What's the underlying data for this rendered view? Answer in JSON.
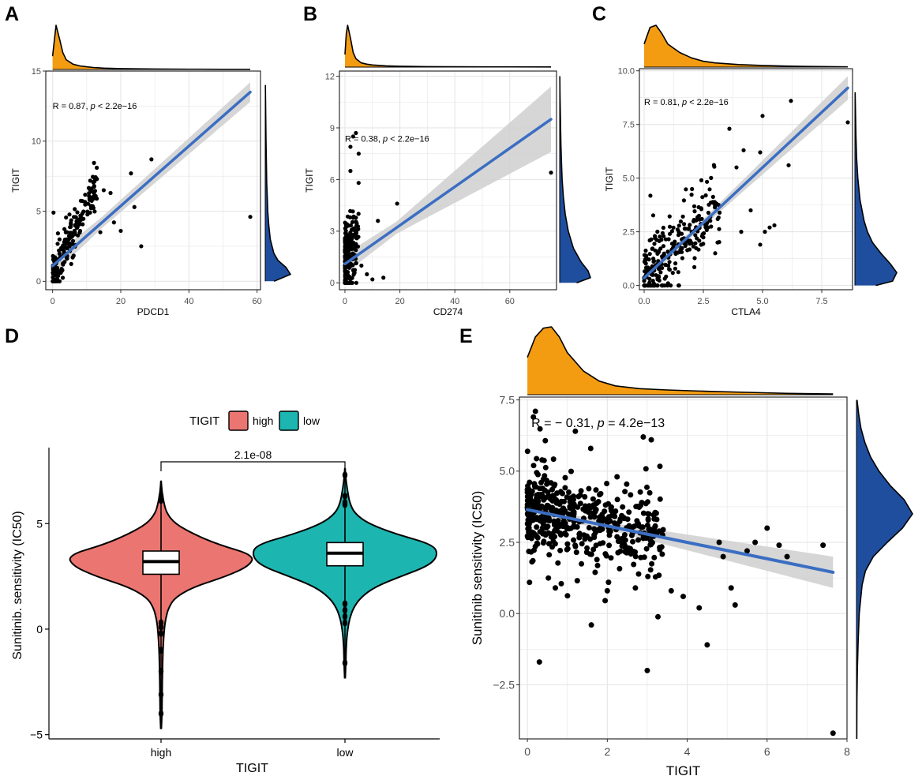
{
  "colors": {
    "orange": "#F39C12",
    "blue": "#1F4E9E",
    "line": "#3B6EC2",
    "band": "#CFCFCF",
    "grid": "#E6E6E6",
    "high": "#EB7570",
    "low": "#1DB5B0"
  },
  "chart_data": [
    {
      "panel": "A",
      "type": "scatter",
      "xlabel": "PDCD1",
      "ylabel": "TIGIT",
      "xlim": [
        -2,
        61
      ],
      "ylim": [
        -0.6,
        15
      ],
      "xticks": [
        0,
        20,
        40,
        60
      ],
      "yticks": [
        0,
        5,
        10,
        15
      ],
      "annotation_prefix": "R = 0.87, ",
      "annotation_p": "p",
      "annotation_suffix": " < 2.2e−16",
      "annotation_at": [
        0,
        12.3
      ],
      "fit": {
        "x": [
          0,
          58
        ],
        "y": [
          1.1,
          13.5
        ],
        "band_start": 0.4,
        "band_end": 0.7
      },
      "outliers": [
        [
          58,
          4.6
        ],
        [
          29,
          8.7
        ],
        [
          26,
          2.5
        ],
        [
          23,
          7.7
        ],
        [
          24,
          5.3
        ],
        [
          20,
          3.6
        ],
        [
          18,
          4.2
        ],
        [
          17,
          6.3
        ],
        [
          15,
          6.5
        ],
        [
          13,
          7.3
        ],
        [
          12,
          5.9
        ],
        [
          11,
          4.9
        ],
        [
          14,
          3.5
        ]
      ],
      "cluster": {
        "n": 200,
        "x0": 0,
        "x1": 13,
        "noise": 0.9,
        "slope": 0.48,
        "int": 0.45,
        "xpow": 1.6
      },
      "density_x": [
        0,
        1,
        2,
        3,
        4,
        6,
        8,
        10,
        12,
        15,
        20,
        25,
        30,
        40,
        50,
        58
      ],
      "density_x_vals": [
        0.3,
        1.0,
        0.7,
        0.38,
        0.22,
        0.12,
        0.08,
        0.06,
        0.045,
        0.03,
        0.02,
        0.015,
        0.01,
        0.006,
        0.004,
        0.003
      ],
      "density_y": [
        0,
        0.5,
        1,
        1.5,
        2,
        3,
        4,
        5,
        6,
        7,
        8,
        9,
        10,
        11,
        12,
        13,
        14
      ],
      "density_y_vals": [
        0.35,
        1.0,
        0.82,
        0.5,
        0.34,
        0.2,
        0.14,
        0.1,
        0.08,
        0.06,
        0.05,
        0.04,
        0.03,
        0.025,
        0.02,
        0.012,
        0.005
      ]
    },
    {
      "panel": "B",
      "type": "scatter",
      "xlabel": "CD274",
      "ylabel": "TIGIT",
      "xlim": [
        -2,
        77
      ],
      "ylim": [
        -0.4,
        12.3
      ],
      "xticks": [
        0,
        20,
        40,
        60
      ],
      "yticks": [
        0,
        3,
        6,
        9,
        12
      ],
      "annotation_prefix": "R = 0.38, ",
      "annotation_p": "p",
      "annotation_suffix": " < 2.2e−16",
      "annotation_at": [
        0,
        8.2
      ],
      "fit": {
        "x": [
          0,
          75
        ],
        "y": [
          1.1,
          9.5
        ],
        "band_start": 0.35,
        "band_end": 1.9
      },
      "outliers": [
        [
          75,
          6.4
        ],
        [
          19,
          4.6
        ],
        [
          12,
          3.6
        ],
        [
          3,
          8.5
        ],
        [
          4,
          8.7
        ],
        [
          2,
          7.9
        ],
        [
          5,
          7.5
        ],
        [
          2,
          6.5
        ],
        [
          14,
          0.3
        ],
        [
          10,
          0.2
        ],
        [
          6,
          1.0
        ],
        [
          8,
          0.5
        ]
      ],
      "cluster": {
        "n": 220,
        "x0": 0,
        "x1": 5,
        "noise": 1.1,
        "slope": 0.3,
        "int": 1.3,
        "xpow": 2.2
      },
      "density_x": [
        0,
        0.5,
        1,
        2,
        3,
        4,
        6,
        8,
        10,
        15,
        20,
        30,
        40,
        50,
        60,
        75
      ],
      "density_x_vals": [
        0.3,
        0.8,
        1.0,
        0.7,
        0.35,
        0.2,
        0.1,
        0.07,
        0.05,
        0.03,
        0.02,
        0.012,
        0.008,
        0.006,
        0.005,
        0.004
      ],
      "density_y": [
        0,
        0.3,
        0.7,
        1.2,
        2,
        3,
        4,
        5,
        6,
        7,
        8,
        9,
        10,
        11,
        12
      ],
      "density_y_vals": [
        0.55,
        1.0,
        0.92,
        0.7,
        0.45,
        0.28,
        0.18,
        0.12,
        0.08,
        0.06,
        0.04,
        0.03,
        0.02,
        0.01,
        0.005
      ]
    },
    {
      "panel": "C",
      "type": "scatter",
      "xlabel": "CTLA4",
      "ylabel": "TIGIT",
      "xlim": [
        -0.2,
        8.8
      ],
      "ylim": [
        -0.2,
        10.1
      ],
      "xticks": [
        0,
        2.5,
        5,
        7.5
      ],
      "xtick_labels": [
        "0.0",
        "2.5",
        "5.0",
        "7.5"
      ],
      "yticks": [
        0,
        2.5,
        5,
        7.5,
        10
      ],
      "ytick_labels": [
        "0.0",
        "2.5",
        "5.0",
        "7.5",
        "10.0"
      ],
      "annotation_prefix": "R = 0.81, ",
      "annotation_p": "p",
      "annotation_suffix": " < 2.2e−16",
      "annotation_at": [
        0,
        8.4
      ],
      "fit": {
        "x": [
          0,
          8.6
        ],
        "y": [
          0.35,
          9.2
        ],
        "band_start": 0.15,
        "band_end": 0.55
      },
      "outliers": [
        [
          8.6,
          7.6
        ],
        [
          6.2,
          8.6
        ],
        [
          5.0,
          7.9
        ],
        [
          6.1,
          5.6
        ],
        [
          4.9,
          6.2
        ],
        [
          4.2,
          6.3
        ],
        [
          3.6,
          7.3
        ],
        [
          3.9,
          5.5
        ],
        [
          5.1,
          2.5
        ],
        [
          5.3,
          2.7
        ],
        [
          5.5,
          2.8
        ],
        [
          4.9,
          1.9
        ],
        [
          4.1,
          2.5
        ],
        [
          4.5,
          3.5
        ],
        [
          3.0,
          1.5
        ],
        [
          3.1,
          2.0
        ]
      ],
      "cluster": {
        "n": 260,
        "x0": 0,
        "x1": 3.2,
        "noise": 0.8,
        "slope": 1.1,
        "int": 0.3,
        "xpow": 1.5
      },
      "density_x": [
        0,
        0.25,
        0.5,
        0.75,
        1,
        1.5,
        2,
        2.5,
        3,
        4,
        5,
        6,
        7,
        8.6
      ],
      "density_x_vals": [
        0.55,
        0.95,
        1.0,
        0.8,
        0.55,
        0.35,
        0.22,
        0.14,
        0.1,
        0.06,
        0.04,
        0.025,
        0.015,
        0.005
      ],
      "density_y": [
        0,
        0.2,
        0.6,
        1,
        1.5,
        2,
        2.5,
        3,
        4,
        5,
        6,
        7,
        8,
        9
      ],
      "density_y_vals": [
        0.5,
        0.9,
        1.0,
        0.85,
        0.62,
        0.42,
        0.3,
        0.22,
        0.12,
        0.07,
        0.04,
        0.025,
        0.015,
        0.005
      ]
    },
    {
      "panel": "D",
      "type": "violin",
      "xlabel": "TIGIT",
      "ylabel": "Sunitinib. sensitivity (IC50)",
      "ylim": [
        -5.2,
        8.6
      ],
      "yticks": [
        -5,
        0,
        5
      ],
      "categories": [
        "high",
        "low"
      ],
      "legend_title": "TIGIT",
      "legend_position": "top",
      "pvalue": "2.1e-08",
      "groups": [
        {
          "name": "high",
          "min": -4.7,
          "max": 7.0,
          "q1": 2.6,
          "median": 3.2,
          "q3": 3.7,
          "whisker_low": 0.4,
          "whisker_high": 5.6,
          "profile_y": [
            -4.7,
            -4,
            -3,
            -2,
            -1,
            0,
            0.5,
            1,
            1.5,
            2,
            2.5,
            3,
            3.5,
            4,
            4.5,
            5,
            5.5,
            6,
            6.5,
            7.0
          ],
          "profile_w": [
            0.003,
            0.01,
            0.012,
            0.015,
            0.02,
            0.035,
            0.05,
            0.08,
            0.15,
            0.35,
            0.7,
            0.95,
            1.0,
            0.62,
            0.35,
            0.15,
            0.06,
            0.03,
            0.01,
            0.002
          ],
          "outliers": [
            0.3,
            0.1,
            -0.2,
            -1.0,
            -2.0,
            -3.1,
            -4.0,
            6.1,
            6.3
          ]
        },
        {
          "name": "low",
          "min": -2.3,
          "max": 7.6,
          "q1": 3.0,
          "median": 3.6,
          "q3": 4.1,
          "whisker_low": 1.4,
          "whisker_high": 5.7,
          "profile_y": [
            -2.3,
            -1.5,
            -1,
            -0.5,
            0,
            0.5,
            1,
            1.5,
            2,
            2.5,
            3,
            3.5,
            4,
            4.5,
            5,
            5.5,
            6,
            6.5,
            7,
            7.6
          ],
          "profile_w": [
            0.003,
            0.01,
            0.012,
            0.018,
            0.03,
            0.05,
            0.09,
            0.17,
            0.32,
            0.6,
            0.9,
            1.0,
            0.95,
            0.55,
            0.25,
            0.1,
            0.05,
            0.03,
            0.012,
            0.002
          ],
          "outliers": [
            1.2,
            0.9,
            0.6,
            0.3,
            -1.6,
            5.9,
            6.0,
            6.3,
            7.3
          ]
        }
      ]
    },
    {
      "panel": "E",
      "type": "scatter",
      "xlabel": "TIGIT",
      "ylabel": "Sunitinib sensitivity (IC50)",
      "xlim": [
        -0.2,
        8.0
      ],
      "ylim": [
        -4.4,
        7.6
      ],
      "xticks": [
        0,
        2,
        4,
        6,
        8
      ],
      "yticks": [
        -2.5,
        0,
        2.5,
        5,
        7.5
      ],
      "ytick_labels": [
        "−2.5",
        "0.0",
        "2.5",
        "5.0",
        "7.5"
      ],
      "annotation_prefix": "R = − 0.31, ",
      "annotation_p": "p",
      "annotation_suffix": " = 4.2e−13",
      "annotation_at": [
        0.1,
        6.55
      ],
      "fit": {
        "x": [
          0,
          7.65
        ],
        "y": [
          3.65,
          1.45
        ],
        "band_start": 0.12,
        "band_end": 0.55
      },
      "outliers": [
        [
          7.65,
          -4.2
        ],
        [
          3.0,
          -2.0
        ],
        [
          0.3,
          -1.7
        ],
        [
          4.5,
          -1.1
        ],
        [
          1.6,
          -0.4
        ],
        [
          4.3,
          0.2
        ],
        [
          3.9,
          0.6
        ],
        [
          5.1,
          0.9
        ],
        [
          5.2,
          0.3
        ],
        [
          4.9,
          2.0
        ],
        [
          5.5,
          2.2
        ],
        [
          6.0,
          3.0
        ],
        [
          6.3,
          2.4
        ],
        [
          7.4,
          2.4
        ],
        [
          6.5,
          2.0
        ],
        [
          5.7,
          2.5
        ],
        [
          2.9,
          6.2
        ],
        [
          3.1,
          6.1
        ],
        [
          0.2,
          7.1
        ],
        [
          1.2,
          6.4
        ],
        [
          0.15,
          6.9
        ],
        [
          3.6,
          0.8
        ],
        [
          2.0,
          0.8
        ],
        [
          0.7,
          0.9
        ],
        [
          4.8,
          2.5
        ]
      ],
      "cluster": {
        "n": 520,
        "x0": 0,
        "x1": 3.4,
        "noise": 0.75,
        "slope": -0.28,
        "int": 3.65,
        "xpow": 1.7
      },
      "density_x": [
        0,
        0.2,
        0.4,
        0.6,
        0.8,
        1.0,
        1.4,
        1.8,
        2.2,
        2.8,
        3.5,
        4.5,
        5.5,
        6.5,
        7.65
      ],
      "density_x_vals": [
        0.55,
        0.85,
        0.98,
        1.0,
        0.85,
        0.62,
        0.35,
        0.2,
        0.13,
        0.09,
        0.07,
        0.05,
        0.035,
        0.02,
        0.01
      ],
      "density_y": [
        -4.4,
        -3,
        -2,
        -1,
        0,
        1,
        1.5,
        2,
        2.5,
        3,
        3.5,
        4,
        4.5,
        5,
        5.5,
        6,
        6.5,
        7,
        7.5
      ],
      "density_y_vals": [
        0.005,
        0.008,
        0.015,
        0.03,
        0.05,
        0.1,
        0.16,
        0.3,
        0.55,
        0.82,
        1.0,
        0.85,
        0.6,
        0.4,
        0.25,
        0.15,
        0.08,
        0.04,
        0.01
      ]
    }
  ]
}
